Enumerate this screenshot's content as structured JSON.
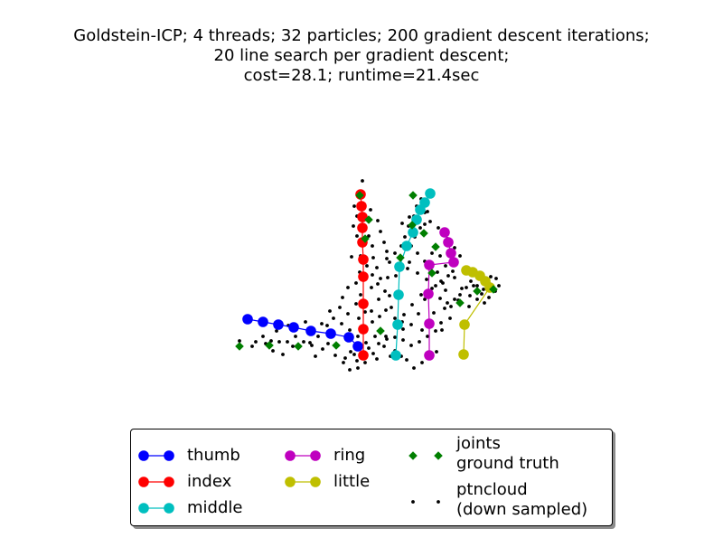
{
  "chart_data": {
    "type": "scatter",
    "title": [
      "Goldstein-ICP; 4 threads; 32 particles; 200 gradient descent iterations;",
      "20 line search per gradient descent;",
      "cost=28.1; runtime=21.4sec"
    ],
    "xlabel": "",
    "ylabel": "",
    "axes_visible": false,
    "grid": false,
    "legend_position": "bottom-center",
    "series": [
      {
        "name": "thumb",
        "kind": "line",
        "color": "#0000ff",
        "points": [
          [
            274,
            353
          ],
          [
            291,
            356
          ],
          [
            308,
            359
          ],
          [
            325,
            362
          ],
          [
            344,
            366
          ],
          [
            366,
            369
          ],
          [
            386,
            373
          ],
          [
            396,
            383
          ]
        ]
      },
      {
        "name": "index",
        "kind": "line",
        "color": "#ff0000",
        "points": [
          [
            399,
            215
          ],
          [
            400,
            228
          ],
          [
            401,
            240
          ],
          [
            401,
            252
          ],
          [
            401,
            268
          ],
          [
            402,
            287
          ],
          [
            402,
            306
          ],
          [
            402,
            336
          ],
          [
            402,
            364
          ],
          [
            402,
            393
          ]
        ]
      },
      {
        "name": "middle",
        "kind": "line",
        "color": "#00bfbf",
        "points": [
          [
            476,
            214
          ],
          [
            470,
            224
          ],
          [
            465,
            232
          ],
          [
            461,
            243
          ],
          [
            457,
            257
          ],
          [
            450,
            272
          ],
          [
            442,
            295
          ],
          [
            441,
            326
          ],
          [
            440,
            359
          ],
          [
            438,
            393
          ]
        ]
      },
      {
        "name": "ring",
        "kind": "line",
        "color": "#bf00bf",
        "points": [
          [
            492,
            257
          ],
          [
            496,
            268
          ],
          [
            499,
            280
          ],
          [
            502,
            290
          ],
          [
            475,
            293
          ],
          [
            474,
            325
          ],
          [
            475,
            358
          ],
          [
            475,
            393
          ]
        ]
      },
      {
        "name": "little",
        "kind": "line",
        "color": "#bfbf00",
        "points": [
          [
            516,
            299
          ],
          [
            523,
            301
          ],
          [
            531,
            305
          ],
          [
            537,
            311
          ],
          [
            542,
            318
          ],
          [
            514,
            359
          ],
          [
            513,
            392
          ]
        ]
      },
      {
        "name": "joints\nground truth",
        "kind": "diamond",
        "color": "#007f00",
        "points": [
          [
            265,
            383
          ],
          [
            298,
            382
          ],
          [
            330,
            383
          ],
          [
            372,
            382
          ],
          [
            421,
            366
          ],
          [
            398,
            216
          ],
          [
            408,
            243
          ],
          [
            404,
            264
          ],
          [
            457,
            216
          ],
          [
            456,
            249
          ],
          [
            443,
            285
          ],
          [
            469,
            258
          ],
          [
            478,
            302
          ],
          [
            482,
            273
          ],
          [
            509,
            335
          ],
          [
            528,
            322
          ],
          [
            546,
            320
          ]
        ]
      },
      {
        "name": "ptncloud\n(down sampled)",
        "kind": "dot",
        "color": "#000000",
        "points": [
          [
            401,
            200
          ],
          [
            392,
            228
          ],
          [
            395,
            239
          ],
          [
            391,
            250
          ],
          [
            410,
            232
          ],
          [
            418,
            244
          ],
          [
            421,
            256
          ],
          [
            425,
            268
          ],
          [
            428,
            278
          ],
          [
            431,
            290
          ],
          [
            417,
            296
          ],
          [
            406,
            294
          ],
          [
            421,
            308
          ],
          [
            426,
            322
          ],
          [
            419,
            331
          ],
          [
            411,
            344
          ],
          [
            397,
            352
          ],
          [
            385,
            347
          ],
          [
            376,
            340
          ],
          [
            365,
            344
          ],
          [
            356,
            358
          ],
          [
            338,
            356
          ],
          [
            319,
            360
          ],
          [
            306,
            366
          ],
          [
            291,
            372
          ],
          [
            279,
            383
          ],
          [
            294,
            380
          ],
          [
            309,
            378
          ],
          [
            324,
            383
          ],
          [
            343,
            379
          ],
          [
            357,
            386
          ],
          [
            363,
            380
          ],
          [
            371,
            393
          ],
          [
            380,
            401
          ],
          [
            387,
            409
          ],
          [
            396,
            407
          ],
          [
            404,
            401
          ],
          [
            413,
            391
          ],
          [
            425,
            383
          ],
          [
            437,
            388
          ],
          [
            450,
            398
          ],
          [
            458,
            407
          ],
          [
            467,
            401
          ],
          [
            476,
            393
          ],
          [
            483,
            389
          ],
          [
            489,
            365
          ],
          [
            498,
            352
          ],
          [
            492,
            341
          ],
          [
            487,
            330
          ],
          [
            493,
            321
          ],
          [
            482,
            316
          ],
          [
            472,
            309
          ],
          [
            466,
            326
          ],
          [
            456,
            337
          ],
          [
            447,
            348
          ],
          [
            433,
            340
          ],
          [
            431,
            327
          ],
          [
            429,
            307
          ],
          [
            438,
            305
          ],
          [
            451,
            297
          ],
          [
            462,
            302
          ],
          [
            470,
            289
          ],
          [
            478,
            280
          ],
          [
            487,
            283
          ],
          [
            493,
            294
          ],
          [
            503,
            307
          ],
          [
            511,
            319
          ],
          [
            520,
            327
          ],
          [
            528,
            331
          ],
          [
            536,
            335
          ],
          [
            541,
            329
          ],
          [
            548,
            322
          ],
          [
            552,
            316
          ],
          [
            549,
            308
          ],
          [
            541,
            313
          ],
          [
            535,
            320
          ],
          [
            528,
            316
          ],
          [
            521,
            311
          ],
          [
            516,
            318
          ],
          [
            509,
            326
          ],
          [
            503,
            331
          ],
          [
            495,
            335
          ],
          [
            490,
            313
          ],
          [
            484,
            301
          ],
          [
            476,
            245
          ],
          [
            470,
            235
          ],
          [
            464,
            233
          ],
          [
            458,
            239
          ],
          [
            452,
            250
          ],
          [
            448,
            262
          ],
          [
            444,
            272
          ],
          [
            437,
            280
          ],
          [
            428,
            286
          ],
          [
            473,
            234
          ],
          [
            465,
            252
          ],
          [
            459,
            262
          ],
          [
            455,
            272
          ],
          [
            462,
            280
          ],
          [
            453,
            290
          ],
          [
            466,
            220
          ],
          [
            461,
            228
          ],
          [
            453,
            240
          ],
          [
            445,
            247
          ],
          [
            470,
            248
          ],
          [
            485,
            252
          ],
          [
            495,
            264
          ],
          [
            503,
            274
          ],
          [
            509,
            283
          ],
          [
            501,
            300
          ],
          [
            496,
            305
          ],
          [
            488,
            311
          ],
          [
            478,
            319
          ],
          [
            470,
            331
          ],
          [
            463,
            347
          ],
          [
            455,
            359
          ],
          [
            446,
            364
          ],
          [
            437,
            373
          ],
          [
            427,
            372
          ],
          [
            415,
            372
          ],
          [
            405,
            379
          ],
          [
            396,
            372
          ],
          [
            387,
            365
          ],
          [
            378,
            358
          ],
          [
            369,
            352
          ],
          [
            362,
            360
          ],
          [
            352,
            372
          ],
          [
            345,
            382
          ],
          [
            336,
            378
          ],
          [
            327,
            372
          ],
          [
            318,
            378
          ],
          [
            300,
            377
          ],
          [
            283,
            378
          ],
          [
            265,
            377
          ],
          [
            302,
            388
          ],
          [
            313,
            392
          ],
          [
            349,
            394
          ],
          [
            382,
            396
          ],
          [
            392,
            392
          ],
          [
            408,
            385
          ],
          [
            419,
            380
          ],
          [
            428,
            375
          ],
          [
            446,
            376
          ],
          [
            455,
            382
          ],
          [
            464,
            378
          ],
          [
            473,
            372
          ],
          [
            482,
            366
          ],
          [
            488,
            357
          ],
          [
            444,
            394
          ],
          [
            432,
            394
          ],
          [
            417,
            397
          ],
          [
            395,
            399
          ],
          [
            388,
            389
          ],
          [
            399,
            326
          ],
          [
            411,
            318
          ],
          [
            385,
            318
          ],
          [
            379,
            329
          ],
          [
            394,
            336
          ],
          [
            404,
            345
          ],
          [
            412,
            356
          ],
          [
            420,
            350
          ],
          [
            427,
            343
          ],
          [
            437,
            352
          ],
          [
            445,
            356
          ],
          [
            467,
            365
          ],
          [
            480,
            346
          ],
          [
            499,
            339
          ],
          [
            507,
            332
          ],
          [
            519,
            339
          ],
          [
            533,
            325
          ],
          [
            543,
            306
          ],
          [
            524,
            316
          ],
          [
            412,
            272
          ],
          [
            389,
            284
          ],
          [
            395,
            261
          ],
          [
            408,
            261
          ],
          [
            399,
            283
          ],
          [
            413,
            285
          ],
          [
            398,
            301
          ],
          [
            412,
            304
          ],
          [
            394,
            313
          ],
          [
            418,
            314
          ]
        ]
      }
    ],
    "legend": {
      "entries": [
        "thumb",
        "index",
        "middle",
        "ring",
        "little",
        "joints\nground truth",
        "ptncloud\n(down sampled)"
      ]
    }
  }
}
